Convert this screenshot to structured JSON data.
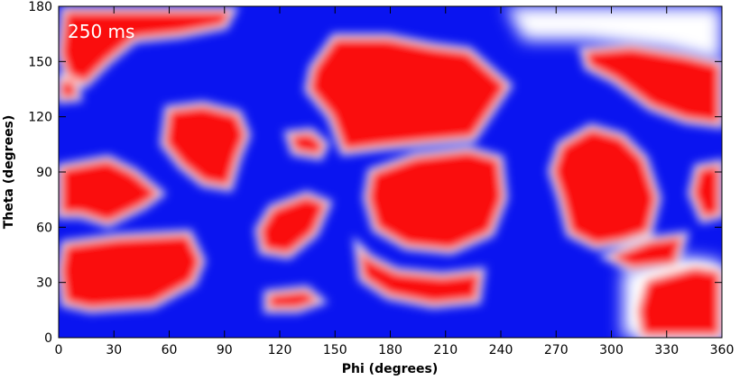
{
  "chart_data": {
    "type": "heatmap",
    "annotation": "250 ms",
    "xlabel": "Phi (degrees)",
    "ylabel": "Theta (degrees)",
    "colors": [
      "#0a14f0",
      "#ffffff",
      "#fa0a0a"
    ],
    "xlim": [
      0,
      360
    ],
    "ylim": [
      0,
      180
    ],
    "xticks": [
      0,
      30,
      60,
      90,
      120,
      150,
      180,
      210,
      240,
      270,
      300,
      330,
      360
    ],
    "yticks": [
      0,
      30,
      60,
      90,
      120,
      150,
      180
    ]
  }
}
